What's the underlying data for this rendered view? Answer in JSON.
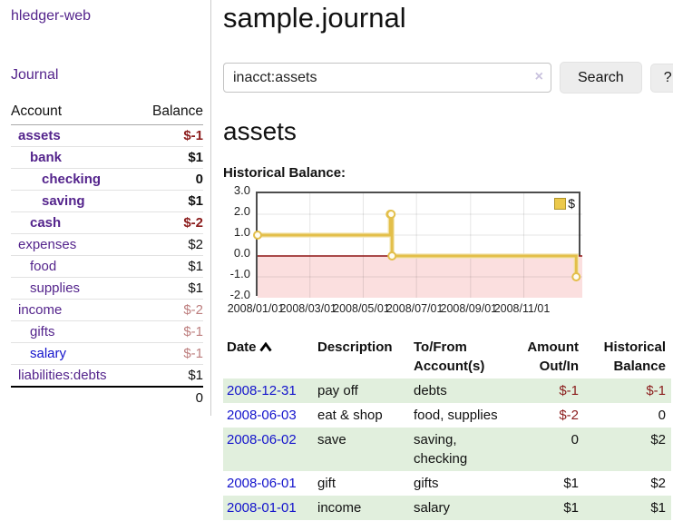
{
  "sidebar": {
    "app_title": "hledger-web",
    "journal_link": "Journal",
    "accounts": {
      "header_account": "Account",
      "header_balance": "Balance",
      "rows": [
        {
          "account": "assets",
          "balance": "$-1"
        },
        {
          "account": "bank",
          "balance": "$1"
        },
        {
          "account": "checking",
          "balance": "0"
        },
        {
          "account": "saving",
          "balance": "$1"
        },
        {
          "account": "cash",
          "balance": "$-2"
        },
        {
          "account": "expenses",
          "balance": "$2"
        },
        {
          "account": "food",
          "balance": "$1"
        },
        {
          "account": "supplies",
          "balance": "$1"
        },
        {
          "account": "income",
          "balance": "$-2"
        },
        {
          "account": "gifts",
          "balance": "$-1"
        },
        {
          "account": "salary",
          "balance": "$-1"
        },
        {
          "account": "liabilities:debts",
          "balance": "$1"
        }
      ],
      "total": "0"
    }
  },
  "main": {
    "title": "sample.journal",
    "search": {
      "value": "inacct:assets",
      "clear_icon": "×",
      "button_label": "Search",
      "help_label": "?"
    },
    "section_title": "assets",
    "chart_heading": "Historical Balance:"
  },
  "chart_data": {
    "type": "line",
    "step": true,
    "title": "Historical Balance",
    "series": [
      {
        "name": "$",
        "color": "#e3bf4a",
        "halo_color": "#f3e6b4",
        "legend_fill": "#ecc94b",
        "legend_border": "#b09429",
        "points": [
          {
            "date": "2008/01/01",
            "day": 0,
            "value": 1
          },
          {
            "date": "2008/06/01",
            "day": 152,
            "value": 2
          },
          {
            "date": "2008/06/02",
            "day": 153,
            "value": 2
          },
          {
            "date": "2008/06/03",
            "day": 154,
            "value": 0
          },
          {
            "date": "2008/12/31",
            "day": 365,
            "value": -1
          }
        ]
      }
    ],
    "x_ticks": [
      {
        "day": 0,
        "label": "2008/01/01"
      },
      {
        "day": 60,
        "label": "2008/03/01"
      },
      {
        "day": 121,
        "label": "2008/05/01"
      },
      {
        "day": 182,
        "label": "2008/07/01"
      },
      {
        "day": 244,
        "label": "2008/09/01"
      },
      {
        "day": 305,
        "label": "2008/11/01"
      }
    ],
    "y_ticks": [
      3.0,
      2.0,
      1.0,
      0.0,
      -1.0,
      -2.0
    ],
    "ylim": [
      -2,
      3
    ],
    "xlim_days": [
      0,
      372
    ],
    "grid_on": true,
    "grid_color": "rgba(0,0,0,0.10)",
    "negative_region_color": "#fbdfdf",
    "zero_line_color": "#8e1414",
    "legend_position": "top-right"
  },
  "register": {
    "headers": {
      "date": "Date",
      "description": "Description",
      "accounts": "To/From Account(s)",
      "amount": "Amount Out/In",
      "balance": "Historical Balance"
    },
    "rows": [
      {
        "date": "2008-12-31",
        "description": "pay off",
        "accounts": "debts",
        "amount": "$-1",
        "balance": "$-1"
      },
      {
        "date": "2008-06-03",
        "description": "eat & shop",
        "accounts": "food, supplies",
        "amount": "$-2",
        "balance": "0"
      },
      {
        "date": "2008-06-02",
        "description": "save",
        "accounts": "saving, checking",
        "amount": "0",
        "balance": "$2"
      },
      {
        "date": "2008-06-01",
        "description": "gift",
        "accounts": "gifts",
        "amount": "$1",
        "balance": "$2"
      },
      {
        "date": "2008-01-01",
        "description": "income",
        "accounts": "salary",
        "amount": "$1",
        "balance": "$1"
      }
    ]
  }
}
